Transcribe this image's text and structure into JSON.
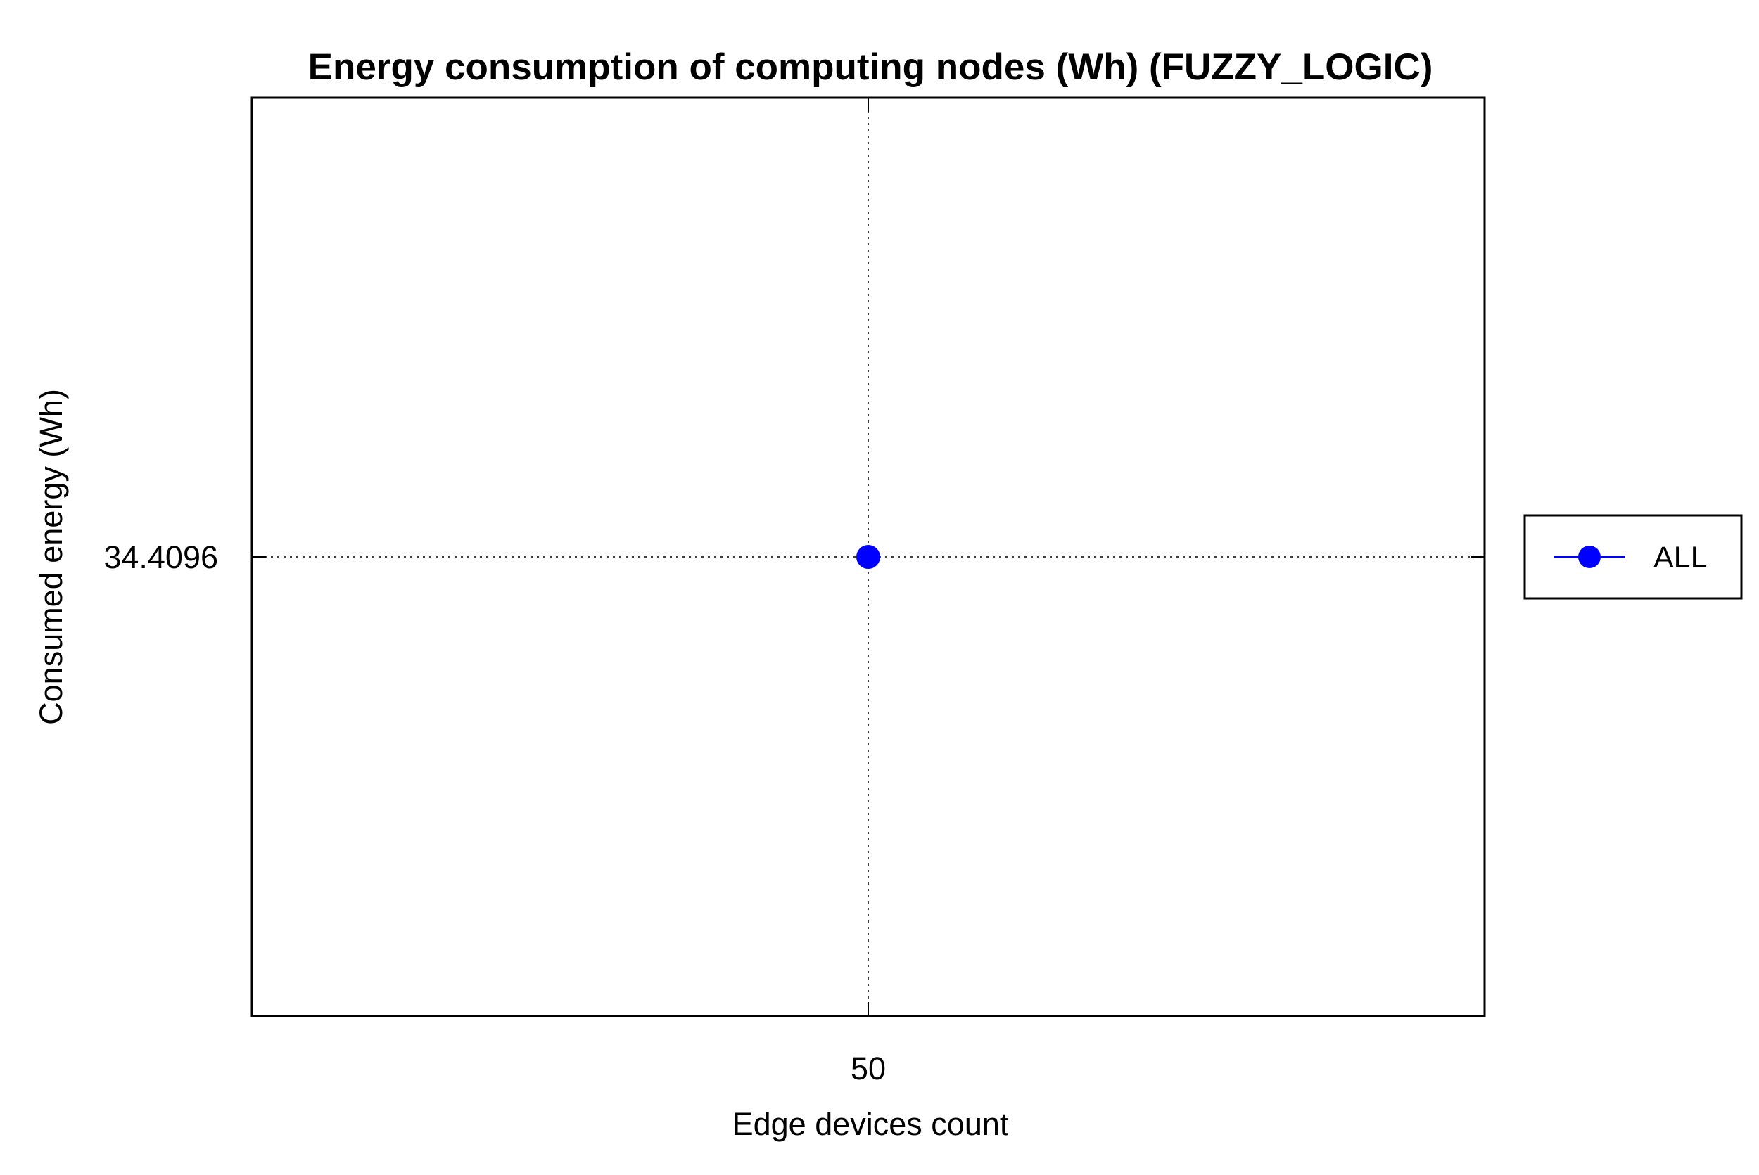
{
  "chart_data": {
    "type": "line",
    "title": "Energy consumption of computing nodes (Wh) (FUZZY_LOGIC)",
    "xlabel": "Edge devices count",
    "ylabel": "Consumed energy (Wh)",
    "x_ticks": [
      "50"
    ],
    "y_ticks": [
      "34.4096"
    ],
    "x": [
      50
    ],
    "series": [
      {
        "name": "ALL",
        "values": [
          34.4096
        ],
        "color": "#0000ff",
        "marker": "circle"
      }
    ],
    "grid": true,
    "grid_style": "dotted",
    "legend_placement": "right"
  }
}
